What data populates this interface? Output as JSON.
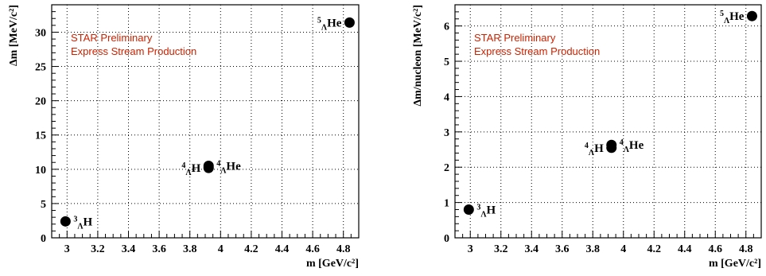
{
  "chart_data": [
    {
      "type": "scatter",
      "xlabel": "m [GeV/c²]",
      "ylabel": "Δm [MeV/c²]",
      "xlim": [
        2.9,
        4.9
      ],
      "ylim": [
        0,
        34
      ],
      "xticks": [
        "3",
        "3.2",
        "3.4",
        "3.6",
        "3.8",
        "4",
        "4.2",
        "4.4",
        "4.6",
        "4.8"
      ],
      "yticks": [
        "0",
        "5",
        "10",
        "15",
        "20",
        "25",
        "30"
      ],
      "grid": true,
      "annotations": [
        "STAR Preliminary",
        "Express Stream Production"
      ],
      "points": [
        {
          "label_sup": "3",
          "label_sub": "Λ",
          "label_el": "H",
          "x": 2.99,
          "y": 2.4,
          "label_side": "right"
        },
        {
          "label_sup": "4",
          "label_sub": "Λ",
          "label_el": "H",
          "x": 3.922,
          "y": 10.2,
          "label_side": "left"
        },
        {
          "label_sup": "4",
          "label_sub": "Λ",
          "label_el": "He",
          "x": 3.922,
          "y": 10.5,
          "label_side": "right"
        },
        {
          "label_sup": "5",
          "label_sub": "Λ",
          "label_el": "He",
          "x": 4.84,
          "y": 31.4,
          "label_side": "left"
        }
      ]
    },
    {
      "type": "scatter",
      "xlabel": "m [GeV/c²]",
      "ylabel": "Δm/nucleon [MeV/c²]",
      "xlim": [
        2.9,
        4.9
      ],
      "ylim": [
        0,
        6.6
      ],
      "xticks": [
        "3",
        "3.2",
        "3.4",
        "3.6",
        "3.8",
        "4",
        "4.2",
        "4.4",
        "4.6",
        "4.8"
      ],
      "yticks": [
        "0",
        "1",
        "2",
        "3",
        "4",
        "5",
        "6"
      ],
      "grid": true,
      "annotations": [
        "STAR Preliminary",
        "Express Stream Production"
      ],
      "points": [
        {
          "label_sup": "3",
          "label_sub": "Λ",
          "label_el": "H",
          "x": 2.99,
          "y": 0.8,
          "label_side": "right"
        },
        {
          "label_sup": "4",
          "label_sub": "Λ",
          "label_el": "H",
          "x": 3.922,
          "y": 2.55,
          "label_side": "left"
        },
        {
          "label_sup": "4",
          "label_sub": "Λ",
          "label_el": "He",
          "x": 3.922,
          "y": 2.63,
          "label_side": "right"
        },
        {
          "label_sup": "5",
          "label_sub": "Λ",
          "label_el": "He",
          "x": 4.84,
          "y": 6.28,
          "label_side": "left"
        }
      ]
    }
  ]
}
